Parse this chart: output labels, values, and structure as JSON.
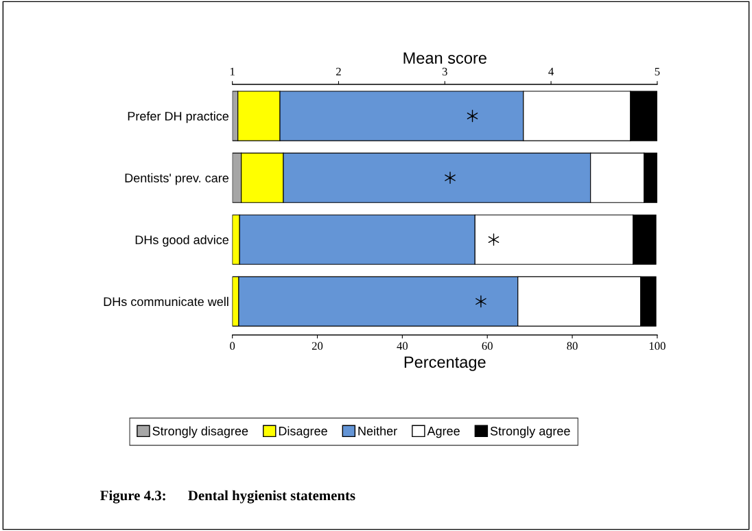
{
  "chart_data": {
    "type": "bar",
    "orientation": "horizontal",
    "stacked": true,
    "title": "Figure 4.3:      Dental hygienist statements",
    "xlabel": "Percentage",
    "x2label": "Mean score",
    "categories": [
      "Prefer DH practice",
      "Dentists' prev. care",
      "DHs good advice",
      "DHs communicate well"
    ],
    "xlim": [
      0,
      100
    ],
    "xticks": [
      0,
      20,
      40,
      60,
      80,
      100
    ],
    "x2lim": [
      1,
      5
    ],
    "x2ticks": [
      1,
      2,
      3,
      4,
      5
    ],
    "series": [
      {
        "name": "Strongly disagree",
        "color": "#a6a6a6",
        "values": [
          1.3,
          2.1,
          null,
          null
        ]
      },
      {
        "name": "Disagree",
        "color": "#ffff00",
        "values": [
          9.9,
          9.9,
          1.7,
          1.5
        ]
      },
      {
        "name": "Neither",
        "color": "#6495d6",
        "values": [
          57.3,
          72.3,
          55.4,
          65.7
        ]
      },
      {
        "name": "Agree",
        "color": "#ffffff",
        "values": [
          25.2,
          12.6,
          37.2,
          28.9
        ]
      },
      {
        "name": "Strongly agree",
        "color": "#000000",
        "values": [
          6.3,
          3.1,
          5.4,
          3.6
        ]
      },
      {
        "type": "scatter",
        "axis": "x2",
        "marker": "cross",
        "color": "#000000",
        "x": [
          "Prefer DH practice",
          "Dentists' prev. care",
          "DHs good advice",
          "DHs communicate well"
        ],
        "values": [
          3.26,
          3.05,
          3.46,
          3.34
        ]
      }
    ],
    "legend": "bottom",
    "grid": false
  }
}
